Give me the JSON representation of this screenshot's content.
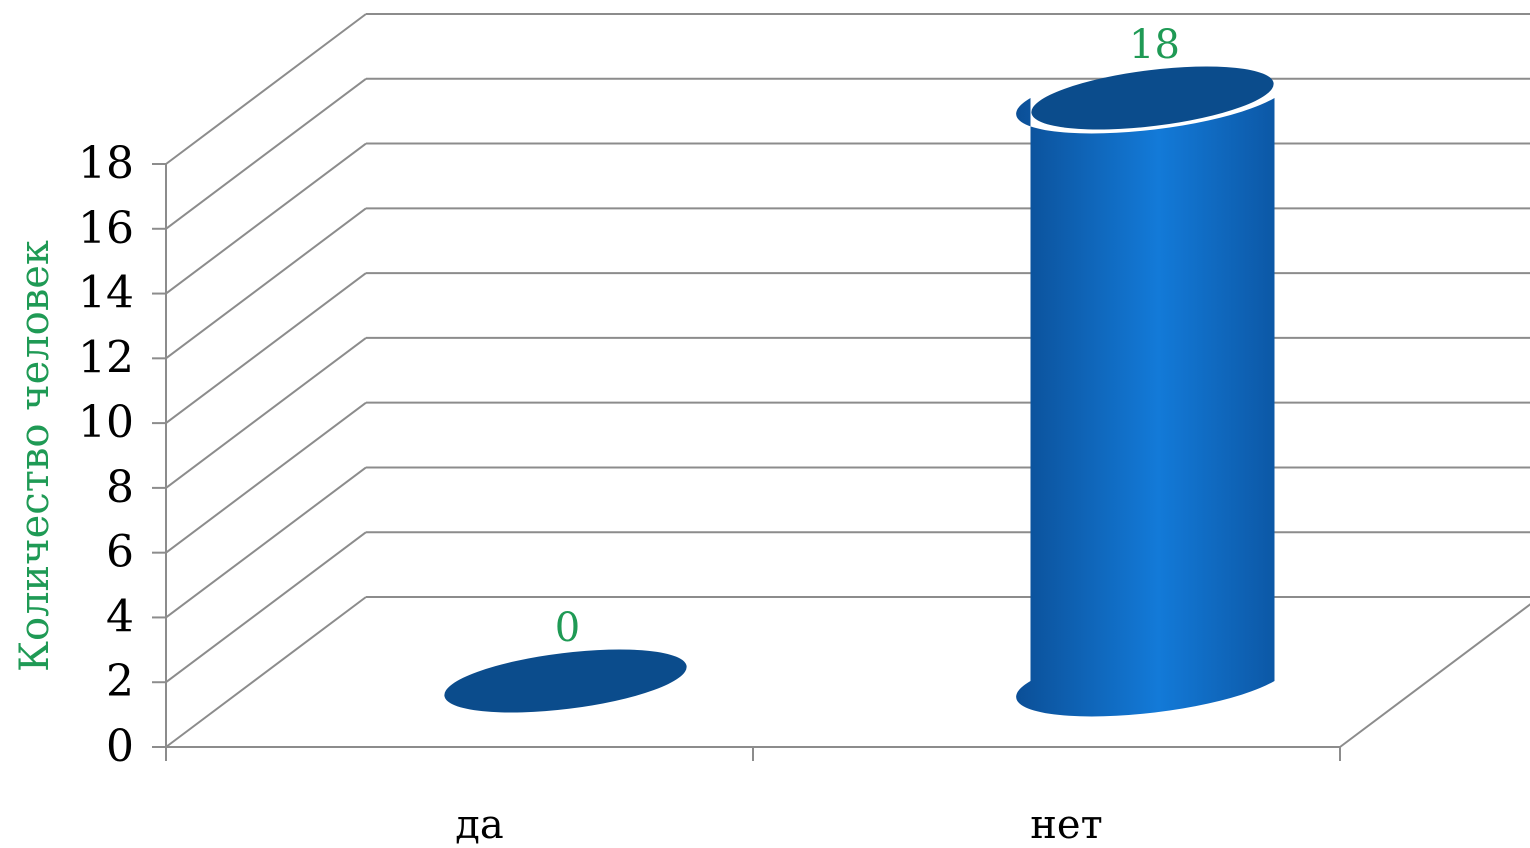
{
  "chart_data": {
    "type": "bar",
    "style": "3d-cylinder",
    "categories": [
      "да",
      "нет"
    ],
    "series": [
      {
        "values": [
          0,
          18
        ],
        "color": "#0f63b8",
        "top_color": "#0b4c8c"
      }
    ],
    "data_labels": [
      "0",
      "18"
    ],
    "data_label_color": "#1f9a55",
    "title": "",
    "xlabel": "",
    "ylabel": "Количество человек",
    "ylabel_color": "#1f9a55",
    "ylim": [
      0,
      18
    ],
    "yticks": [
      0,
      2,
      4,
      6,
      8,
      10,
      12,
      14,
      16,
      18
    ],
    "grid": true,
    "legend": "none"
  }
}
